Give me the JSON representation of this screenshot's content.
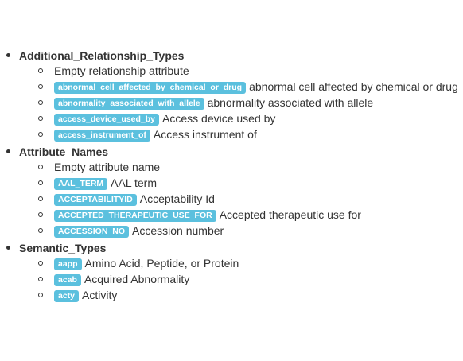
{
  "groups": [
    {
      "title": "Additional_Relationship_Types",
      "items": [
        {
          "badge": "",
          "text": "Empty relationship attribute"
        },
        {
          "badge": "abnormal_cell_affected_by_chemical_or_drug",
          "text": "abnormal cell affected by chemical or drug"
        },
        {
          "badge": "abnormality_associated_with_allele",
          "text": "abnormality associated with allele"
        },
        {
          "badge": "access_device_used_by",
          "text": "Access device used by"
        },
        {
          "badge": "access_instrument_of",
          "text": "Access instrument of"
        }
      ]
    },
    {
      "title": "Attribute_Names",
      "items": [
        {
          "badge": "",
          "text": "Empty attribute name"
        },
        {
          "badge": "AAL_TERM",
          "text": "AAL term"
        },
        {
          "badge": "ACCEPTABILITYID",
          "text": "Acceptability Id"
        },
        {
          "badge": "ACCEPTED_THERAPEUTIC_USE_FOR",
          "text": "Accepted therapeutic use for"
        },
        {
          "badge": "ACCESSION_NO",
          "text": "Accession number"
        }
      ]
    },
    {
      "title": "Semantic_Types",
      "items": [
        {
          "badge": "aapp",
          "text": "Amino Acid, Peptide, or Protein"
        },
        {
          "badge": "acab",
          "text": "Acquired Abnormality"
        },
        {
          "badge": "acty",
          "text": "Activity"
        }
      ]
    }
  ],
  "colors": {
    "badge_bg": "#5bc0de",
    "badge_text": "#ffffff",
    "text": "#333333"
  }
}
